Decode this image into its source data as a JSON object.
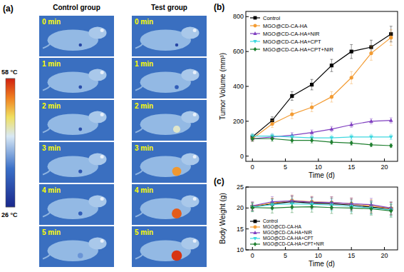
{
  "thermal_images": {
    "title": "(a)",
    "columns": [
      "Control group",
      "Test group"
    ],
    "times": [
      "0 min",
      "1 min",
      "2 min",
      "3 min",
      "4 min",
      "5 min"
    ],
    "colorbar": {
      "range": [
        26,
        58
      ],
      "ticks": [
        {
          "value": 58,
          "label": "58 °C"
        },
        {
          "value": 26,
          "label": "26 °C"
        }
      ]
    },
    "spot_temperature": [
      [
        30,
        31,
        31,
        32,
        33,
        38
      ],
      [
        30,
        33,
        45,
        52,
        55,
        57
      ]
    ]
  },
  "chart_data": [
    {
      "type": "line",
      "title": "(b)",
      "xlabel": "Time (d)",
      "ylabel": "Tumor Volume (mm³)",
      "x": [
        0,
        3,
        6,
        9,
        12,
        15,
        18,
        21
      ],
      "xlim": [
        -1,
        22
      ],
      "xticks": [
        0,
        5,
        10,
        15,
        20
      ],
      "ylim": [
        -30,
        830
      ],
      "yticks": [
        0,
        200,
        400,
        600,
        800
      ],
      "legend": "upper left",
      "series": [
        {
          "name": "Control",
          "color": "#000000",
          "marker": "square",
          "values": [
            110,
            205,
            345,
            410,
            520,
            600,
            625,
            700
          ],
          "errors": [
            15,
            20,
            25,
            30,
            35,
            40,
            40,
            45
          ]
        },
        {
          "name": "MGO@CD-CA-HA",
          "color": "#f39c34",
          "marker": "circle",
          "values": [
            100,
            185,
            240,
            280,
            340,
            450,
            590,
            680
          ],
          "errors": [
            15,
            20,
            25,
            25,
            30,
            35,
            40,
            45
          ]
        },
        {
          "name": "MGO@CD-CA-HA+NIR",
          "color": "#8040c0",
          "marker": "triangle_up",
          "values": [
            100,
            110,
            120,
            135,
            155,
            180,
            200,
            205
          ],
          "errors": [
            15,
            15,
            15,
            15,
            15,
            15,
            15,
            15
          ]
        },
        {
          "name": "MGO@CD-CA-HA+CPT",
          "color": "#3fd8e0",
          "marker": "triangle_down",
          "values": [
            115,
            115,
            110,
            105,
            105,
            110,
            110,
            110
          ],
          "errors": [
            15,
            15,
            15,
            15,
            15,
            15,
            15,
            15
          ]
        },
        {
          "name": "MGO@CD-CA-HA+CPT+NIR",
          "color": "#1f7f2f",
          "marker": "diamond",
          "values": [
            100,
            100,
            90,
            90,
            80,
            75,
            65,
            60
          ],
          "errors": [
            15,
            15,
            15,
            15,
            12,
            12,
            10,
            10
          ]
        }
      ]
    },
    {
      "type": "line",
      "title": "(c)",
      "xlabel": "Time (d)",
      "ylabel": "Body Weight (g)",
      "x": [
        0,
        3,
        6,
        9,
        12,
        15,
        18,
        21
      ],
      "xlim": [
        -1,
        22
      ],
      "xticks": [
        0,
        5,
        10,
        15,
        20
      ],
      "ylim": [
        10,
        25
      ],
      "yticks": [
        10,
        15,
        20,
        25
      ],
      "legend": "lower left",
      "series": [
        {
          "name": "Control",
          "color": "#000000",
          "marker": "square",
          "values": [
            20.3,
            21.0,
            21.5,
            21.2,
            21.0,
            20.7,
            20.2,
            19.8
          ],
          "errors": [
            1.0,
            1.2,
            1.3,
            1.3,
            1.4,
            1.4,
            1.5,
            1.5
          ]
        },
        {
          "name": "MGO@CD-CA-HA",
          "color": "#f39c34",
          "marker": "circle",
          "values": [
            20.4,
            21.2,
            21.8,
            21.5,
            21.3,
            21.0,
            20.5,
            19.9
          ],
          "errors": [
            1.0,
            1.2,
            1.3,
            1.3,
            1.4,
            1.4,
            1.5,
            1.5
          ]
        },
        {
          "name": "MGO@CD-CA-HA+NIR",
          "color": "#8040c0",
          "marker": "triangle_up",
          "values": [
            20.5,
            21.5,
            21.7,
            21.4,
            21.3,
            21.0,
            20.8,
            20.0
          ],
          "errors": [
            1.0,
            1.2,
            1.3,
            1.3,
            1.4,
            1.4,
            1.5,
            1.5
          ]
        },
        {
          "name": "MGO@CD-CA-HA+CPT",
          "color": "#3fd8e0",
          "marker": "triangle_down",
          "values": [
            20.2,
            20.8,
            21.0,
            20.9,
            20.7,
            20.4,
            20.0,
            19.5
          ],
          "errors": [
            1.0,
            1.2,
            1.3,
            1.3,
            1.4,
            1.4,
            1.5,
            1.5
          ]
        },
        {
          "name": "MGO@CD-CA-HA+CPT+NIR",
          "color": "#1f7f2f",
          "marker": "diamond",
          "values": [
            20.1,
            20.0,
            20.2,
            20.3,
            20.1,
            20.0,
            19.8,
            19.3
          ],
          "errors": [
            1.0,
            1.2,
            1.3,
            1.3,
            1.4,
            1.4,
            1.5,
            1.5
          ]
        }
      ]
    }
  ]
}
